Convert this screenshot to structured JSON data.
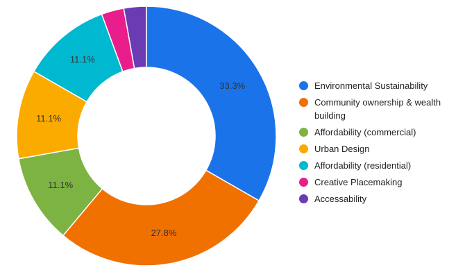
{
  "chart_data": {
    "type": "pie",
    "donut": true,
    "legend_position": "right",
    "series": [
      {
        "name": "Environmental Sustainability",
        "value": 33.3,
        "label": "33.3%",
        "color": "#1a73e8"
      },
      {
        "name": "Community ownership & wealth building",
        "value": 27.8,
        "label": "27.8%",
        "color": "#f07000"
      },
      {
        "name": "Affordability (commercial)",
        "value": 11.1,
        "label": "11.1%",
        "color": "#7cb342"
      },
      {
        "name": "Urban Design",
        "value": 11.1,
        "label": "11.1%",
        "color": "#fbab00"
      },
      {
        "name": "Affordability (residential)",
        "value": 11.1,
        "label": "11.1%",
        "color": "#00b8d0"
      },
      {
        "name": "Creative Placemaking",
        "value": 2.8,
        "label": "",
        "color": "#e91e8c"
      },
      {
        "name": "Accessability",
        "value": 2.8,
        "label": "",
        "color": "#6a3bb3"
      }
    ]
  }
}
